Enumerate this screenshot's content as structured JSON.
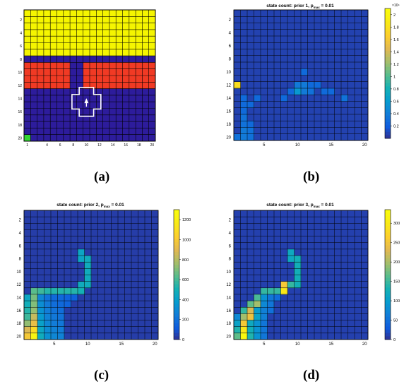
{
  "captions": [
    "(a)",
    "(b)",
    "(c)",
    "(d)"
  ],
  "colors": {
    "yellow": "#f5f500",
    "navy": "#2d1c9c",
    "red": "#f03a24",
    "green": "#34d534",
    "grid": "#000000",
    "outline": "#ffffff"
  },
  "chart_data": [
    {
      "panel": "a",
      "type": "heatmap",
      "title": "",
      "grid_size": 20,
      "regions": [
        {
          "rows": [
            1,
            7
          ],
          "cols": [
            1,
            20
          ],
          "color": "yellow"
        },
        {
          "rows": [
            8,
            8
          ],
          "cols": [
            1,
            20
          ],
          "color": "navy"
        },
        {
          "rows": [
            9,
            12
          ],
          "cols": [
            1,
            7
          ],
          "color": "red"
        },
        {
          "rows": [
            9,
            12
          ],
          "cols": [
            8,
            9
          ],
          "color": "navy"
        },
        {
          "rows": [
            9,
            12
          ],
          "cols": [
            10,
            20
          ],
          "color": "red"
        },
        {
          "rows": [
            13,
            20
          ],
          "cols": [
            1,
            20
          ],
          "color": "navy"
        },
        {
          "rows": [
            20,
            20
          ],
          "cols": [
            1,
            1
          ],
          "color": "green"
        }
      ],
      "yticks": [
        2,
        4,
        6,
        8,
        10,
        12,
        14,
        16,
        18,
        20
      ],
      "xticks": [
        1,
        4,
        6,
        8,
        10,
        12,
        14,
        16,
        18,
        20
      ]
    },
    {
      "panel": "b",
      "type": "heatmap",
      "title_pre": "state count: prior 1, p",
      "title_sub": "max",
      "title_post": " = 0.01",
      "colorbar_exponent": "×10⁴",
      "colorbar_ticks": [
        "2",
        "1.8",
        "1.6",
        "1.4",
        "1.2",
        "1",
        "0.8",
        "0.6",
        "0.4",
        "0.2"
      ],
      "colorbar_tick_values": [
        2,
        1.8,
        1.6,
        1.4,
        1.2,
        1,
        0.8,
        0.6,
        0.4,
        0.2
      ],
      "vmin": 0,
      "vmax": 2.1,
      "background_value": 0.1,
      "xticks": [
        5,
        10,
        15,
        20
      ],
      "yticks": [
        2,
        4,
        6,
        8,
        10,
        12,
        14,
        16,
        18,
        20
      ],
      "cells": [
        {
          "row": 12,
          "col": 1,
          "value": 1.8
        },
        {
          "row": 10,
          "col": 11,
          "value": 0.3
        },
        {
          "row": 12,
          "col": 10,
          "value": 0.4
        },
        {
          "row": 12,
          "col": 11,
          "value": 0.4
        },
        {
          "row": 12,
          "col": 12,
          "value": 0.3
        },
        {
          "row": 12,
          "col": 13,
          "value": 0.3
        },
        {
          "row": 13,
          "col": 9,
          "value": 0.3
        },
        {
          "row": 13,
          "col": 10,
          "value": 0.6
        },
        {
          "row": 13,
          "col": 11,
          "value": 0.4
        },
        {
          "row": 13,
          "col": 12,
          "value": 0.35
        },
        {
          "row": 13,
          "col": 14,
          "value": 0.3
        },
        {
          "row": 13,
          "col": 15,
          "value": 0.3
        },
        {
          "row": 14,
          "col": 2,
          "value": 0.3
        },
        {
          "row": 14,
          "col": 4,
          "value": 0.3
        },
        {
          "row": 14,
          "col": 8,
          "value": 0.3
        },
        {
          "row": 14,
          "col": 17,
          "value": 0.35
        },
        {
          "row": 15,
          "col": 2,
          "value": 0.3
        },
        {
          "row": 15,
          "col": 3,
          "value": 0.3
        },
        {
          "row": 16,
          "col": 2,
          "value": 0.3
        },
        {
          "row": 17,
          "col": 2,
          "value": 0.35
        },
        {
          "row": 18,
          "col": 2,
          "value": 0.35
        },
        {
          "row": 18,
          "col": 3,
          "value": 0.3
        },
        {
          "row": 19,
          "col": 2,
          "value": 0.4
        },
        {
          "row": 19,
          "col": 3,
          "value": 0.35
        },
        {
          "row": 20,
          "col": 2,
          "value": 0.4
        },
        {
          "row": 20,
          "col": 3,
          "value": 0.35
        },
        {
          "row": 20,
          "col": 1,
          "value": 0.35
        }
      ]
    },
    {
      "panel": "c",
      "type": "heatmap",
      "title_pre": "state count: prior 2, p",
      "title_sub": "max",
      "title_post": " = 0.01",
      "colorbar_ticks": [
        "1200",
        "1000",
        "800",
        "600",
        "400",
        "200",
        "0"
      ],
      "colorbar_tick_values": [
        1200,
        1000,
        800,
        600,
        400,
        200,
        0
      ],
      "vmin": 0,
      "vmax": 1300,
      "background_value": 50,
      "xticks": [
        5,
        10,
        15,
        20
      ],
      "yticks": [
        2,
        4,
        6,
        8,
        10,
        12,
        14,
        16,
        18,
        20
      ],
      "cells": [
        {
          "row": 7,
          "col": 9,
          "value": 450
        },
        {
          "row": 8,
          "col": 9,
          "value": 450
        },
        {
          "row": 8,
          "col": 10,
          "value": 480
        },
        {
          "row": 9,
          "col": 10,
          "value": 480
        },
        {
          "row": 10,
          "col": 10,
          "value": 480
        },
        {
          "row": 11,
          "col": 10,
          "value": 480
        },
        {
          "row": 12,
          "col": 9,
          "value": 480
        },
        {
          "row": 12,
          "col": 10,
          "value": 480
        },
        {
          "row": 13,
          "col": 2,
          "value": 650
        },
        {
          "row": 13,
          "col": 3,
          "value": 600
        },
        {
          "row": 13,
          "col": 4,
          "value": 550
        },
        {
          "row": 13,
          "col": 5,
          "value": 550
        },
        {
          "row": 13,
          "col": 6,
          "value": 550
        },
        {
          "row": 13,
          "col": 7,
          "value": 550
        },
        {
          "row": 13,
          "col": 8,
          "value": 550
        },
        {
          "row": 13,
          "col": 9,
          "value": 520
        },
        {
          "row": 14,
          "col": 1,
          "value": 450
        },
        {
          "row": 14,
          "col": 2,
          "value": 700
        },
        {
          "row": 14,
          "col": 3,
          "value": 300
        },
        {
          "row": 14,
          "col": 4,
          "value": 220
        },
        {
          "row": 14,
          "col": 5,
          "value": 180
        },
        {
          "row": 14,
          "col": 6,
          "value": 180
        },
        {
          "row": 14,
          "col": 7,
          "value": 160
        },
        {
          "row": 14,
          "col": 8,
          "value": 150
        },
        {
          "row": 15,
          "col": 1,
          "value": 500
        },
        {
          "row": 15,
          "col": 2,
          "value": 720
        },
        {
          "row": 15,
          "col": 3,
          "value": 330
        },
        {
          "row": 15,
          "col": 4,
          "value": 250
        },
        {
          "row": 15,
          "col": 5,
          "value": 200
        },
        {
          "row": 15,
          "col": 6,
          "value": 180
        },
        {
          "row": 15,
          "col": 7,
          "value": 160
        },
        {
          "row": 16,
          "col": 1,
          "value": 550
        },
        {
          "row": 16,
          "col": 2,
          "value": 750
        },
        {
          "row": 16,
          "col": 3,
          "value": 350
        },
        {
          "row": 16,
          "col": 4,
          "value": 260
        },
        {
          "row": 16,
          "col": 5,
          "value": 220
        },
        {
          "row": 16,
          "col": 6,
          "value": 200
        },
        {
          "row": 17,
          "col": 1,
          "value": 600
        },
        {
          "row": 17,
          "col": 2,
          "value": 850
        },
        {
          "row": 17,
          "col": 3,
          "value": 380
        },
        {
          "row": 17,
          "col": 4,
          "value": 280
        },
        {
          "row": 17,
          "col": 5,
          "value": 240
        },
        {
          "row": 17,
          "col": 6,
          "value": 220
        },
        {
          "row": 18,
          "col": 1,
          "value": 750
        },
        {
          "row": 18,
          "col": 2,
          "value": 950
        },
        {
          "row": 18,
          "col": 3,
          "value": 420
        },
        {
          "row": 18,
          "col": 4,
          "value": 300
        },
        {
          "row": 18,
          "col": 5,
          "value": 260
        },
        {
          "row": 18,
          "col": 6,
          "value": 240
        },
        {
          "row": 19,
          "col": 1,
          "value": 900
        },
        {
          "row": 19,
          "col": 2,
          "value": 1100
        },
        {
          "row": 19,
          "col": 3,
          "value": 450
        },
        {
          "row": 19,
          "col": 4,
          "value": 320
        },
        {
          "row": 19,
          "col": 5,
          "value": 280
        },
        {
          "row": 19,
          "col": 6,
          "value": 260
        },
        {
          "row": 20,
          "col": 1,
          "value": 1000
        },
        {
          "row": 20,
          "col": 2,
          "value": 1250
        },
        {
          "row": 20,
          "col": 3,
          "value": 480
        },
        {
          "row": 20,
          "col": 4,
          "value": 340
        },
        {
          "row": 20,
          "col": 5,
          "value": 300
        },
        {
          "row": 20,
          "col": 6,
          "value": 280
        }
      ]
    },
    {
      "panel": "d",
      "type": "heatmap",
      "title_pre": "state count: prior 3, p",
      "title_sub": "max",
      "title_post": " = 0.01",
      "colorbar_ticks": [
        "300",
        "250",
        "200",
        "150",
        "100",
        "50",
        "0"
      ],
      "colorbar_tick_values": [
        300,
        250,
        200,
        150,
        100,
        50,
        0
      ],
      "vmin": 0,
      "vmax": 335,
      "background_value": 15,
      "xticks": [
        5,
        10,
        15,
        20
      ],
      "yticks": [
        2,
        4,
        6,
        8,
        10,
        12,
        14,
        16,
        18,
        20
      ],
      "cells": [
        {
          "row": 7,
          "col": 9,
          "value": 120
        },
        {
          "row": 8,
          "col": 9,
          "value": 120
        },
        {
          "row": 8,
          "col": 10,
          "value": 130
        },
        {
          "row": 9,
          "col": 10,
          "value": 130
        },
        {
          "row": 10,
          "col": 10,
          "value": 130
        },
        {
          "row": 11,
          "col": 10,
          "value": 130
        },
        {
          "row": 12,
          "col": 8,
          "value": 260
        },
        {
          "row": 12,
          "col": 9,
          "value": 150
        },
        {
          "row": 12,
          "col": 10,
          "value": 130
        },
        {
          "row": 13,
          "col": 5,
          "value": 150
        },
        {
          "row": 13,
          "col": 6,
          "value": 150
        },
        {
          "row": 13,
          "col": 7,
          "value": 150
        },
        {
          "row": 13,
          "col": 8,
          "value": 300
        },
        {
          "row": 14,
          "col": 4,
          "value": 160
        },
        {
          "row": 14,
          "col": 5,
          "value": 90
        },
        {
          "row": 14,
          "col": 6,
          "value": 60
        },
        {
          "row": 14,
          "col": 7,
          "value": 50
        },
        {
          "row": 15,
          "col": 3,
          "value": 170
        },
        {
          "row": 15,
          "col": 4,
          "value": 200
        },
        {
          "row": 15,
          "col": 5,
          "value": 80
        },
        {
          "row": 15,
          "col": 6,
          "value": 60
        },
        {
          "row": 16,
          "col": 2,
          "value": 150
        },
        {
          "row": 16,
          "col": 3,
          "value": 230
        },
        {
          "row": 16,
          "col": 4,
          "value": 100
        },
        {
          "row": 16,
          "col": 5,
          "value": 70
        },
        {
          "row": 16,
          "col": 6,
          "value": 55
        },
        {
          "row": 17,
          "col": 1,
          "value": 80
        },
        {
          "row": 17,
          "col": 2,
          "value": 200
        },
        {
          "row": 17,
          "col": 3,
          "value": 250
        },
        {
          "row": 17,
          "col": 4,
          "value": 110
        },
        {
          "row": 17,
          "col": 5,
          "value": 70
        },
        {
          "row": 18,
          "col": 1,
          "value": 110
        },
        {
          "row": 18,
          "col": 2,
          "value": 260
        },
        {
          "row": 18,
          "col": 3,
          "value": 120
        },
        {
          "row": 18,
          "col": 4,
          "value": 90
        },
        {
          "row": 18,
          "col": 5,
          "value": 60
        },
        {
          "row": 19,
          "col": 1,
          "value": 140
        },
        {
          "row": 19,
          "col": 2,
          "value": 300
        },
        {
          "row": 19,
          "col": 3,
          "value": 130
        },
        {
          "row": 19,
          "col": 4,
          "value": 90
        },
        {
          "row": 19,
          "col": 5,
          "value": 60
        },
        {
          "row": 20,
          "col": 1,
          "value": 170
        },
        {
          "row": 20,
          "col": 2,
          "value": 330
        },
        {
          "row": 20,
          "col": 3,
          "value": 140
        },
        {
          "row": 20,
          "col": 4,
          "value": 90
        },
        {
          "row": 20,
          "col": 5,
          "value": 60
        }
      ]
    }
  ]
}
